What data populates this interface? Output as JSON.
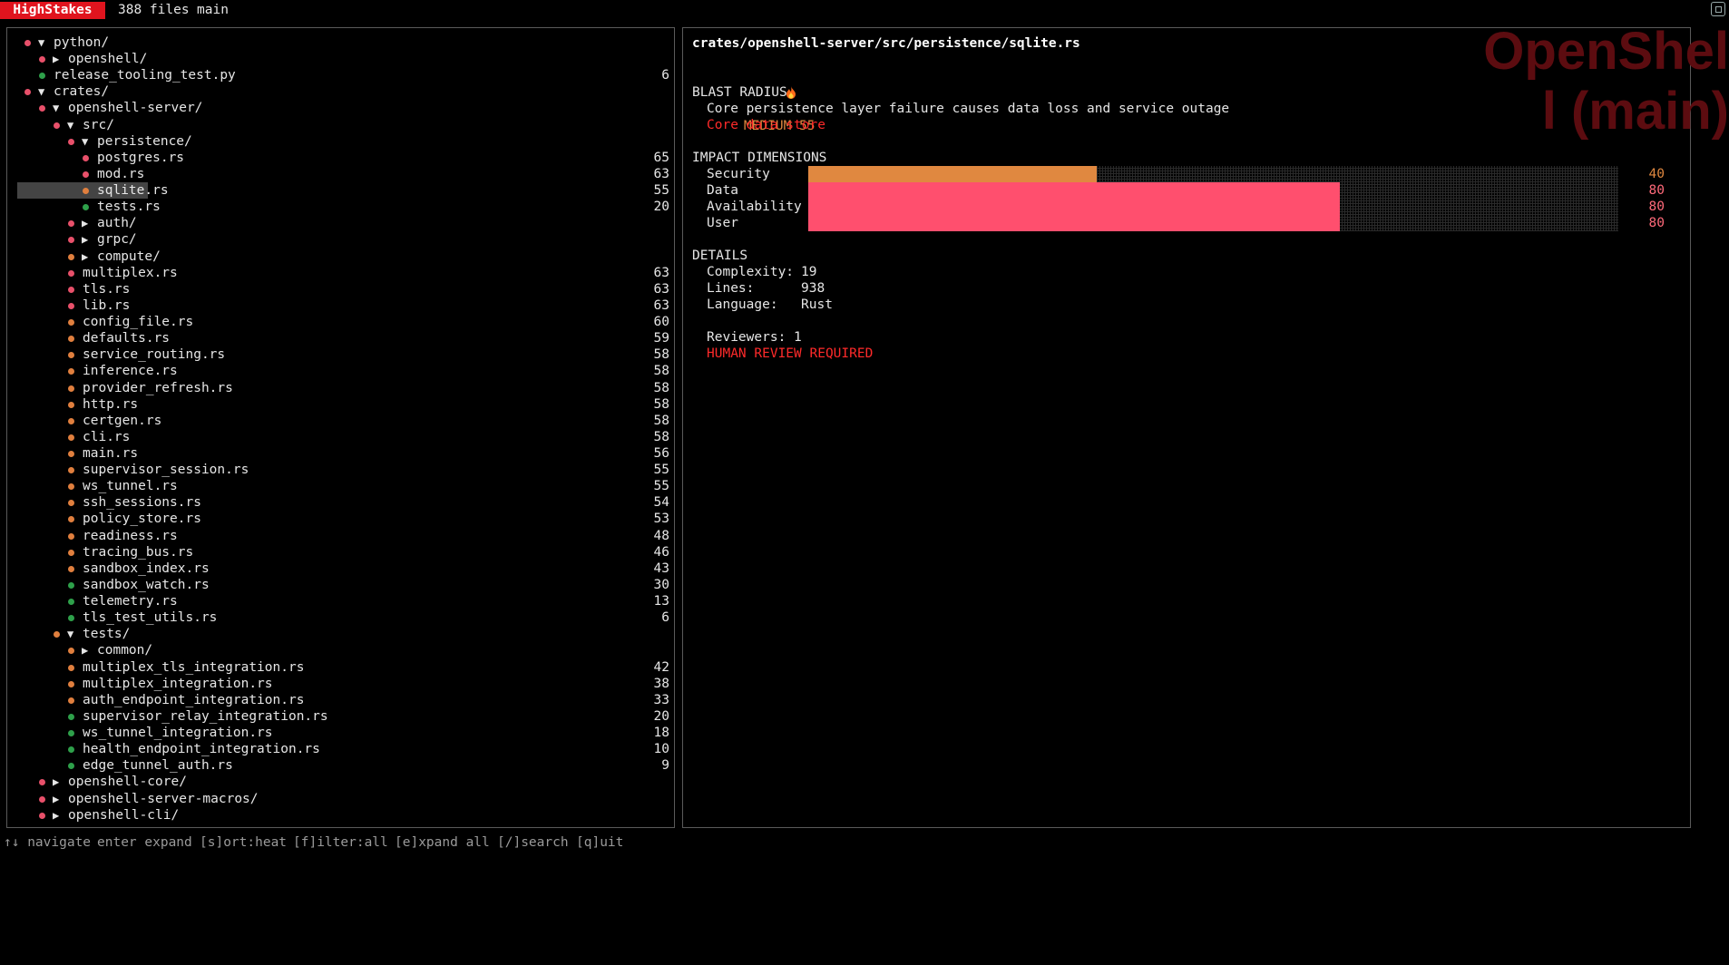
{
  "app": {
    "title": "HighStakes",
    "file_count": "388 files",
    "branch": "main"
  },
  "colors": {
    "red": "#e8506a",
    "orange": "#e07f3e",
    "green": "#2ea04a",
    "bar_high": "#ff4f6e",
    "bar_mid": "#e08840",
    "critical": "#ff2a2a"
  },
  "tree": [
    {
      "name": "python/",
      "indent": 0,
      "arrow": "▼",
      "dot": "red",
      "score": ""
    },
    {
      "name": "openshell/",
      "indent": 1,
      "arrow": "▶",
      "dot": "red",
      "score": ""
    },
    {
      "name": "release_tooling_test.py",
      "indent": 1,
      "arrow": "",
      "dot": "green",
      "score": "6"
    },
    {
      "name": "crates/",
      "indent": 0,
      "arrow": "▼",
      "dot": "red",
      "score": ""
    },
    {
      "name": "openshell-server/",
      "indent": 1,
      "arrow": "▼",
      "dot": "red",
      "score": ""
    },
    {
      "name": "src/",
      "indent": 2,
      "arrow": "▼",
      "dot": "red",
      "score": ""
    },
    {
      "name": "persistence/",
      "indent": 3,
      "arrow": "▼",
      "dot": "red",
      "score": ""
    },
    {
      "name": "postgres.rs",
      "indent": 4,
      "arrow": "",
      "dot": "red",
      "score": "65"
    },
    {
      "name": "mod.rs",
      "indent": 4,
      "arrow": "",
      "dot": "red",
      "score": "63"
    },
    {
      "name": "sqlite.rs",
      "indent": 4,
      "arrow": "",
      "dot": "orange",
      "score": "55",
      "selected": true
    },
    {
      "name": "tests.rs",
      "indent": 4,
      "arrow": "",
      "dot": "green",
      "score": "20"
    },
    {
      "name": "auth/",
      "indent": 3,
      "arrow": "▶",
      "dot": "red",
      "score": ""
    },
    {
      "name": "grpc/",
      "indent": 3,
      "arrow": "▶",
      "dot": "red",
      "score": ""
    },
    {
      "name": "compute/",
      "indent": 3,
      "arrow": "▶",
      "dot": "orange",
      "score": ""
    },
    {
      "name": "multiplex.rs",
      "indent": 3,
      "arrow": "",
      "dot": "red",
      "score": "63"
    },
    {
      "name": "tls.rs",
      "indent": 3,
      "arrow": "",
      "dot": "red",
      "score": "63"
    },
    {
      "name": "lib.rs",
      "indent": 3,
      "arrow": "",
      "dot": "red",
      "score": "63"
    },
    {
      "name": "config_file.rs",
      "indent": 3,
      "arrow": "",
      "dot": "orange",
      "score": "60"
    },
    {
      "name": "defaults.rs",
      "indent": 3,
      "arrow": "",
      "dot": "orange",
      "score": "59"
    },
    {
      "name": "service_routing.rs",
      "indent": 3,
      "arrow": "",
      "dot": "orange",
      "score": "58"
    },
    {
      "name": "inference.rs",
      "indent": 3,
      "arrow": "",
      "dot": "orange",
      "score": "58"
    },
    {
      "name": "provider_refresh.rs",
      "indent": 3,
      "arrow": "",
      "dot": "orange",
      "score": "58"
    },
    {
      "name": "http.rs",
      "indent": 3,
      "arrow": "",
      "dot": "orange",
      "score": "58"
    },
    {
      "name": "certgen.rs",
      "indent": 3,
      "arrow": "",
      "dot": "orange",
      "score": "58"
    },
    {
      "name": "cli.rs",
      "indent": 3,
      "arrow": "",
      "dot": "orange",
      "score": "58"
    },
    {
      "name": "main.rs",
      "indent": 3,
      "arrow": "",
      "dot": "orange",
      "score": "56"
    },
    {
      "name": "supervisor_session.rs",
      "indent": 3,
      "arrow": "",
      "dot": "orange",
      "score": "55"
    },
    {
      "name": "ws_tunnel.rs",
      "indent": 3,
      "arrow": "",
      "dot": "orange",
      "score": "55"
    },
    {
      "name": "ssh_sessions.rs",
      "indent": 3,
      "arrow": "",
      "dot": "orange",
      "score": "54"
    },
    {
      "name": "policy_store.rs",
      "indent": 3,
      "arrow": "",
      "dot": "orange",
      "score": "53"
    },
    {
      "name": "readiness.rs",
      "indent": 3,
      "arrow": "",
      "dot": "orange",
      "score": "48"
    },
    {
      "name": "tracing_bus.rs",
      "indent": 3,
      "arrow": "",
      "dot": "orange",
      "score": "46"
    },
    {
      "name": "sandbox_index.rs",
      "indent": 3,
      "arrow": "",
      "dot": "orange",
      "score": "43"
    },
    {
      "name": "sandbox_watch.rs",
      "indent": 3,
      "arrow": "",
      "dot": "green",
      "score": "30"
    },
    {
      "name": "telemetry.rs",
      "indent": 3,
      "arrow": "",
      "dot": "green",
      "score": "13"
    },
    {
      "name": "tls_test_utils.rs",
      "indent": 3,
      "arrow": "",
      "dot": "green",
      "score": "6"
    },
    {
      "name": "tests/",
      "indent": 2,
      "arrow": "▼",
      "dot": "orange",
      "score": ""
    },
    {
      "name": "common/",
      "indent": 3,
      "arrow": "▶",
      "dot": "orange",
      "score": ""
    },
    {
      "name": "multiplex_tls_integration.rs",
      "indent": 3,
      "arrow": "",
      "dot": "orange",
      "score": "42"
    },
    {
      "name": "multiplex_integration.rs",
      "indent": 3,
      "arrow": "",
      "dot": "orange",
      "score": "38"
    },
    {
      "name": "auth_endpoint_integration.rs",
      "indent": 3,
      "arrow": "",
      "dot": "orange",
      "score": "33"
    },
    {
      "name": "supervisor_relay_integration.rs",
      "indent": 3,
      "arrow": "",
      "dot": "green",
      "score": "20"
    },
    {
      "name": "ws_tunnel_integration.rs",
      "indent": 3,
      "arrow": "",
      "dot": "green",
      "score": "18"
    },
    {
      "name": "health_endpoint_integration.rs",
      "indent": 3,
      "arrow": "",
      "dot": "green",
      "score": "10"
    },
    {
      "name": "edge_tunnel_auth.rs",
      "indent": 3,
      "arrow": "",
      "dot": "green",
      "score": "9"
    },
    {
      "name": "openshell-core/",
      "indent": 1,
      "arrow": "▶",
      "dot": "red",
      "score": ""
    },
    {
      "name": "openshell-server-macros/",
      "indent": 1,
      "arrow": "▶",
      "dot": "red",
      "score": ""
    },
    {
      "name": "openshell-cli/",
      "indent": 1,
      "arrow": "▶",
      "dot": "red",
      "score": ""
    }
  ],
  "detail": {
    "path": "crates/openshell-server/src/persistence/sqlite.rs",
    "severity_icon": "fire-icon",
    "severity": "MEDIUM 55",
    "blast_heading": "BLAST RADIUS",
    "blast_text": "Core persistence layer failure causes data loss and service outage",
    "blast_tag": "Core data store",
    "impact_heading": "IMPACT DIMENSIONS",
    "dimensions": [
      {
        "label": "Security",
        "value": 40,
        "display": "40"
      },
      {
        "label": "Data",
        "value": 80,
        "display": "80"
      },
      {
        "label": "Availability",
        "value": 80,
        "display": "80"
      },
      {
        "label": "User",
        "value": 80,
        "display": "80"
      }
    ],
    "details_heading": "DETAILS",
    "complexity_label": "Complexity:",
    "complexity": "19",
    "lines_label": "Lines:",
    "lines": "938",
    "language_label": "Language:",
    "language": "Rust",
    "reviewers": "Reviewers: 1",
    "review_flag": "HUMAN REVIEW REQUIRED"
  },
  "watermark": {
    "line1": "OpenShel",
    "line2": "l (main)"
  },
  "footer": {
    "navigate": "↑↓ navigate",
    "expand": "enter expand",
    "sort": "[s]ort:heat",
    "filter": "[f]ilter:all",
    "expand_all": "[e]xpand all",
    "search": "[/]search",
    "quit": "[q]uit"
  }
}
